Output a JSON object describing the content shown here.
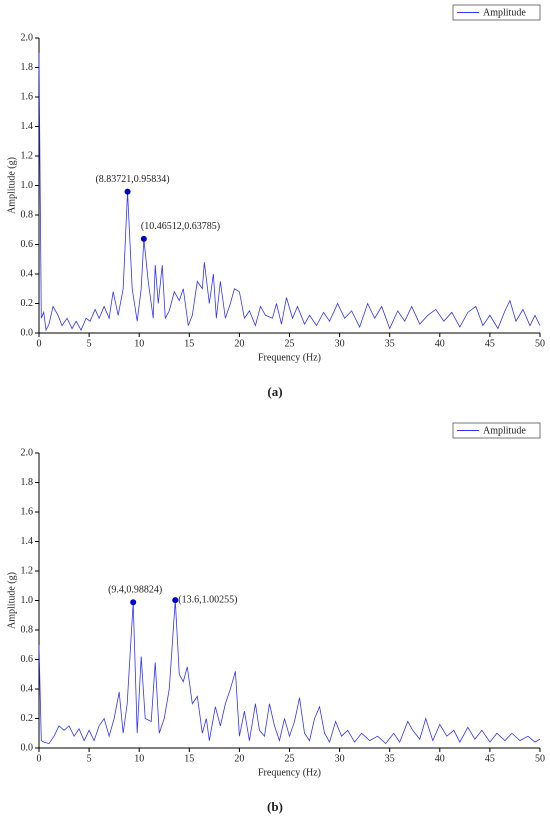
{
  "chart_data": [
    {
      "type": "line",
      "caption": "(a)",
      "xlabel": "Frequency (Hz)",
      "ylabel": "Amplitude (g)",
      "xlim": [
        0,
        50
      ],
      "xticks": [
        0,
        5,
        10,
        15,
        20,
        25,
        30,
        35,
        40,
        45,
        50
      ],
      "ylim": [
        0,
        2
      ],
      "yticks": [
        {
          "value": 0,
          "label": "0.0"
        },
        {
          "value": 0.2,
          "label": "0.2"
        },
        {
          "value": 0.4,
          "label": "0.4"
        },
        {
          "value": 0.6,
          "label": "0.6"
        },
        {
          "value": 0.8,
          "label": "0.8"
        },
        {
          "value": 1,
          "label": "1.0"
        },
        {
          "value": 1.2,
          "label": "1.2"
        },
        {
          "value": 1.4,
          "label": "1.4"
        },
        {
          "value": 1.6,
          "label": "1.6"
        },
        {
          "value": 1.8,
          "label": "1.8"
        },
        {
          "value": 2,
          "label": "2.0"
        }
      ],
      "legend": "upper right",
      "x": [
        0,
        0.23,
        0.47,
        0.7,
        1,
        1.4,
        1.9,
        2.3,
        2.8,
        3.3,
        3.7,
        4.2,
        4.7,
        5.1,
        5.6,
        6,
        6.5,
        7,
        7.4,
        7.9,
        8.4,
        8.83721,
        9.3,
        9.8,
        10.2,
        10.46512,
        10.9,
        11.4,
        11.6,
        11.9,
        12.3,
        12.6,
        13,
        13.5,
        14,
        14.4,
        14.9,
        15.3,
        15.8,
        16.3,
        16.5,
        17,
        17.4,
        17.7,
        18.1,
        18.6,
        19.1,
        19.5,
        20,
        20.5,
        21,
        21.6,
        22.1,
        22.6,
        23.3,
        23.7,
        24.2,
        24.7,
        25.3,
        25.8,
        26.5,
        27,
        27.7,
        28.4,
        29,
        29.8,
        30.5,
        31.2,
        32,
        32.8,
        33.5,
        34.2,
        35,
        35.8,
        36.5,
        37.2,
        38,
        38.8,
        39.6,
        40.4,
        41.2,
        42,
        42.8,
        43.6,
        44.3,
        45,
        45.8,
        46.5,
        47,
        47.6,
        48.3,
        49,
        49.5,
        50
      ],
      "series": [
        {
          "name": "Amplitude",
          "color": "#3333ff",
          "values": [
            1.9,
            0.1,
            0.14,
            0.02,
            0.06,
            0.18,
            0.12,
            0.05,
            0.1,
            0.03,
            0.08,
            0.02,
            0.1,
            0.08,
            0.16,
            0.1,
            0.18,
            0.1,
            0.28,
            0.12,
            0.3,
            0.95834,
            0.3,
            0.08,
            0.3,
            0.63785,
            0.35,
            0.1,
            0.46,
            0.2,
            0.46,
            0.1,
            0.15,
            0.28,
            0.22,
            0.3,
            0.05,
            0.12,
            0.35,
            0.3,
            0.48,
            0.2,
            0.4,
            0.1,
            0.35,
            0.1,
            0.2,
            0.3,
            0.28,
            0.1,
            0.15,
            0.05,
            0.18,
            0.12,
            0.1,
            0.2,
            0.06,
            0.24,
            0.1,
            0.18,
            0.06,
            0.12,
            0.05,
            0.14,
            0.08,
            0.2,
            0.1,
            0.15,
            0.04,
            0.2,
            0.1,
            0.18,
            0.03,
            0.15,
            0.08,
            0.18,
            0.06,
            0.12,
            0.16,
            0.08,
            0.14,
            0.04,
            0.14,
            0.18,
            0.05,
            0.12,
            0.03,
            0.15,
            0.22,
            0.08,
            0.16,
            0.05,
            0.12,
            0.05
          ]
        }
      ],
      "annotations": [
        {
          "x": 8.83721,
          "y": 0.95834,
          "label": "(8.83721,0.95834)"
        },
        {
          "x": 10.46512,
          "y": 0.63785,
          "label": "(10.46512,0.63785)"
        }
      ]
    },
    {
      "type": "line",
      "caption": "(b)",
      "xlabel": "Frequency (Hz)",
      "ylabel": "Amplitude (g)",
      "xlim": [
        0,
        50
      ],
      "xticks": [
        0,
        5,
        10,
        15,
        20,
        25,
        30,
        35,
        40,
        45,
        50
      ],
      "ylim": [
        0,
        2
      ],
      "yticks": [
        {
          "value": 0,
          "label": "0.0"
        },
        {
          "value": 0.2,
          "label": "0.2"
        },
        {
          "value": 0.4,
          "label": "0.4"
        },
        {
          "value": 0.6,
          "label": "0.6"
        },
        {
          "value": 0.8,
          "label": "0.8"
        },
        {
          "value": 1,
          "label": "1.0"
        },
        {
          "value": 1.2,
          "label": "1.2"
        },
        {
          "value": 1.4,
          "label": "1.4"
        },
        {
          "value": 1.6,
          "label": "1.6"
        },
        {
          "value": 1.8,
          "label": "1.8"
        },
        {
          "value": 2,
          "label": "2.0"
        }
      ],
      "legend": "upper right",
      "x": [
        0,
        0.23,
        0.5,
        1,
        1.5,
        2,
        2.5,
        3,
        3.5,
        4,
        4.5,
        5,
        5.5,
        6,
        6.5,
        7,
        7.5,
        8,
        8.4,
        8.8,
        9.4,
        9.8,
        10.2,
        10.6,
        11.2,
        11.6,
        12,
        12.5,
        13,
        13.6,
        14,
        14.4,
        14.8,
        15.3,
        15.8,
        16.3,
        16.7,
        17,
        17.6,
        18.1,
        18.6,
        19.1,
        19.6,
        20,
        20.5,
        21,
        21.6,
        22,
        22.5,
        23,
        23.5,
        24,
        24.5,
        25,
        25.5,
        26,
        26.5,
        27,
        27.5,
        28,
        28.5,
        29,
        29.6,
        30.2,
        30.8,
        31.5,
        32.2,
        33,
        33.8,
        34.6,
        35.4,
        36,
        36.8,
        37.3,
        38,
        38.6,
        39.3,
        40,
        40.7,
        41.4,
        42,
        42.8,
        43.5,
        44.2,
        45,
        45.7,
        46.5,
        47.2,
        48,
        48.8,
        49.5,
        50
      ],
      "series": [
        {
          "name": "Amplitude",
          "color": "#3333ff",
          "values": [
            0.7,
            0.05,
            0.04,
            0.03,
            0.08,
            0.15,
            0.12,
            0.15,
            0.08,
            0.13,
            0.05,
            0.12,
            0.05,
            0.15,
            0.2,
            0.08,
            0.2,
            0.38,
            0.1,
            0.3,
            0.98824,
            0.1,
            0.62,
            0.2,
            0.18,
            0.58,
            0.1,
            0.2,
            0.4,
            1.00255,
            0.5,
            0.45,
            0.55,
            0.3,
            0.35,
            0.1,
            0.2,
            0.05,
            0.28,
            0.15,
            0.3,
            0.4,
            0.52,
            0.08,
            0.25,
            0.05,
            0.3,
            0.12,
            0.08,
            0.3,
            0.15,
            0.05,
            0.2,
            0.08,
            0.18,
            0.34,
            0.1,
            0.05,
            0.2,
            0.28,
            0.1,
            0.04,
            0.18,
            0.08,
            0.12,
            0.04,
            0.1,
            0.05,
            0.08,
            0.03,
            0.1,
            0.04,
            0.18,
            0.12,
            0.06,
            0.2,
            0.05,
            0.16,
            0.08,
            0.12,
            0.04,
            0.14,
            0.06,
            0.12,
            0.04,
            0.1,
            0.05,
            0.1,
            0.05,
            0.08,
            0.04,
            0.06
          ]
        }
      ],
      "annotations": [
        {
          "x": 9.4,
          "y": 0.98824,
          "label": "(9.4,0.98824)"
        },
        {
          "x": 13.6,
          "y": 1.00255,
          "label": "(13.6,1.00255)"
        }
      ]
    }
  ]
}
